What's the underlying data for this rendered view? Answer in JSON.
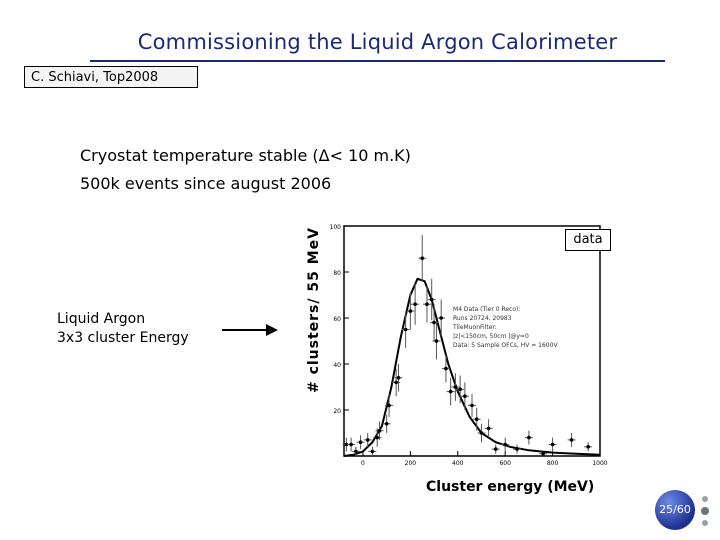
{
  "slide": {
    "title": "Commissioning the Liquid Argon Calorimeter",
    "author": "C. Schiavi, Top2008",
    "line1": "Cryostat temperature stable (Δ< 10 m.K)",
    "line2": "500k events since august 2006",
    "annotation_1": "Liquid Argon",
    "annotation_2": "3x3 cluster Energy",
    "page": "25/60"
  },
  "chart_data": {
    "type": "scatter",
    "xlabel": "Cluster energy (MeV)",
    "ylabel": "# clusters/ 55 MeV",
    "x_ticks": [
      "0",
      "200",
      "400",
      "600",
      "800",
      "1000"
    ],
    "y_ticks": [
      "20",
      "40",
      "60",
      "80",
      "100"
    ],
    "xlim": [
      -80,
      1000
    ],
    "ylim": [
      0,
      100
    ],
    "legend": "data",
    "info_lines": [
      "M4 Data (Tier 0 Reco):",
      "Runs 20724, 20983",
      "TileMuonFilter:",
      "|z|<150cm, 50cm |@y=0",
      "Data: 5 Sample OFCs, HV = 1600V"
    ],
    "series": [
      {
        "type": "points",
        "x": [
          -70,
          -50,
          -30,
          -10,
          20,
          40,
          60,
          70,
          100,
          110,
          140,
          150,
          180,
          200,
          220,
          250,
          270,
          290,
          300,
          310,
          330,
          350,
          370,
          390,
          410,
          430,
          460,
          480,
          500,
          530,
          560,
          600,
          650,
          700,
          760,
          800,
          880,
          950
        ],
        "y": [
          5,
          5,
          2,
          6,
          7,
          2,
          8,
          11,
          14,
          22,
          32,
          34,
          55,
          63,
          66,
          86,
          66,
          68,
          58,
          50,
          60,
          38,
          28,
          30,
          29,
          26,
          22,
          16,
          10,
          12,
          3,
          5,
          3,
          8,
          1,
          5,
          7,
          4
        ],
        "err": [
          3,
          3,
          2,
          3,
          3,
          2,
          4,
          4,
          4,
          5,
          6,
          6,
          8,
          8,
          9,
          10,
          8,
          9,
          8,
          8,
          8,
          6,
          6,
          6,
          6,
          6,
          5,
          5,
          4,
          4,
          2,
          3,
          2,
          3,
          1,
          3,
          3,
          2
        ]
      },
      {
        "type": "fit",
        "x": [
          -80,
          -40,
          0,
          40,
          80,
          120,
          160,
          200,
          230,
          260,
          290,
          320,
          360,
          400,
          450,
          500,
          560,
          620,
          700,
          800,
          900,
          1000
        ],
        "y": [
          0,
          0.5,
          2,
          6,
          13,
          30,
          52,
          70,
          77,
          76,
          68,
          56,
          40,
          28,
          17,
          10,
          6,
          4,
          2.5,
          1.5,
          1,
          0.5
        ]
      }
    ]
  }
}
